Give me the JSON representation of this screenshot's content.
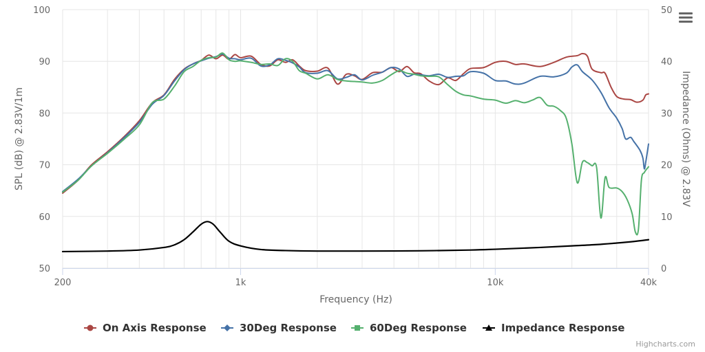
{
  "chart_data": {
    "type": "line",
    "title": "",
    "xlabel": "Frequency (Hz)",
    "ylabel": "SPL (dB) @ 2.83V/1m",
    "ylabel_right": "Impedance (Ohms) @ 2.83V",
    "x_scale": "log",
    "xlim": [
      200,
      40000
    ],
    "ylim": [
      50,
      100
    ],
    "ylim_right": [
      0,
      50
    ],
    "x_ticks": [
      200,
      1000,
      10000,
      40000
    ],
    "x_tick_labels": [
      "200",
      "1k",
      "10k",
      "40k"
    ],
    "y_ticks": [
      50,
      60,
      70,
      80,
      90,
      100
    ],
    "y_tick_labels": [
      "50",
      "60",
      "70",
      "80",
      "90",
      "100"
    ],
    "y_right_ticks": [
      0,
      10,
      20,
      30,
      40,
      50
    ],
    "y_right_tick_labels": [
      "0",
      "10",
      "20",
      "30",
      "40",
      "50"
    ],
    "grid": true,
    "legend_position": "bottom-center",
    "series": [
      {
        "name": "On Axis Response",
        "axis": "left",
        "color": "#aa4643",
        "marker": "circle",
        "points": [
          [
            200,
            64.5
          ],
          [
            230,
            67
          ],
          [
            260,
            70
          ],
          [
            300,
            72.5
          ],
          [
            350,
            75.5
          ],
          [
            400,
            78.5
          ],
          [
            450,
            82
          ],
          [
            500,
            83.5
          ],
          [
            550,
            86.5
          ],
          [
            600,
            88.5
          ],
          [
            650,
            89.5
          ],
          [
            700,
            90.2
          ],
          [
            750,
            91.2
          ],
          [
            800,
            90.5
          ],
          [
            850,
            91.2
          ],
          [
            900,
            90.4
          ],
          [
            950,
            91.3
          ],
          [
            1000,
            90.7
          ],
          [
            1100,
            91
          ],
          [
            1200,
            89.4
          ],
          [
            1300,
            89.1
          ],
          [
            1400,
            90.3
          ],
          [
            1500,
            89.8
          ],
          [
            1600,
            90.3
          ],
          [
            1700,
            89.1
          ],
          [
            1800,
            88.2
          ],
          [
            2000,
            88.1
          ],
          [
            2200,
            88.7
          ],
          [
            2400,
            85.6
          ],
          [
            2600,
            87.5
          ],
          [
            2800,
            87.2
          ],
          [
            3000,
            86.5
          ],
          [
            3300,
            87.8
          ],
          [
            3600,
            87.9
          ],
          [
            3900,
            88.8
          ],
          [
            4200,
            88
          ],
          [
            4500,
            89
          ],
          [
            4800,
            87.8
          ],
          [
            5100,
            87.6
          ],
          [
            5500,
            86.2
          ],
          [
            6000,
            85.5
          ],
          [
            6500,
            86.8
          ],
          [
            7000,
            86.3
          ],
          [
            7500,
            87.6
          ],
          [
            8000,
            88.6
          ],
          [
            9000,
            88.8
          ],
          [
            10000,
            89.8
          ],
          [
            11000,
            90
          ],
          [
            12000,
            89.4
          ],
          [
            13000,
            89.5
          ],
          [
            15000,
            89
          ],
          [
            17000,
            89.8
          ],
          [
            19000,
            90.8
          ],
          [
            21000,
            91.1
          ],
          [
            22000,
            91.5
          ],
          [
            23000,
            91
          ],
          [
            24000,
            88.5
          ],
          [
            26000,
            87.8
          ],
          [
            27000,
            87.7
          ],
          [
            28500,
            85
          ],
          [
            30000,
            83.2
          ],
          [
            32000,
            82.7
          ],
          [
            34000,
            82.6
          ],
          [
            36000,
            82.1
          ],
          [
            38000,
            82.5
          ],
          [
            39000,
            83.5
          ],
          [
            40000,
            83.7
          ]
        ]
      },
      {
        "name": "30Deg Response",
        "axis": "left",
        "color": "#4572a7",
        "marker": "diamond",
        "points": [
          [
            200,
            64.8
          ],
          [
            230,
            67.2
          ],
          [
            260,
            69.8
          ],
          [
            300,
            72.3
          ],
          [
            350,
            75.3
          ],
          [
            400,
            78.2
          ],
          [
            450,
            81.7
          ],
          [
            500,
            83.4
          ],
          [
            550,
            86.2
          ],
          [
            600,
            88.4
          ],
          [
            650,
            89.5
          ],
          [
            700,
            90.1
          ],
          [
            750,
            90.6
          ],
          [
            800,
            90.9
          ],
          [
            850,
            91.4
          ],
          [
            900,
            90.6
          ],
          [
            950,
            90.5
          ],
          [
            1000,
            90.3
          ],
          [
            1100,
            90.6
          ],
          [
            1200,
            89.1
          ],
          [
            1300,
            89.3
          ],
          [
            1400,
            90.5
          ],
          [
            1500,
            90.2
          ],
          [
            1600,
            89.7
          ],
          [
            1700,
            88.9
          ],
          [
            1800,
            87.8
          ],
          [
            2000,
            87.7
          ],
          [
            2200,
            88.2
          ],
          [
            2400,
            86.6
          ],
          [
            2600,
            86.9
          ],
          [
            2800,
            87.4
          ],
          [
            3000,
            86.4
          ],
          [
            3300,
            87.3
          ],
          [
            3600,
            87.9
          ],
          [
            3900,
            88.8
          ],
          [
            4200,
            88.5
          ],
          [
            4500,
            87.1
          ],
          [
            4800,
            87.5
          ],
          [
            5100,
            87.4
          ],
          [
            5500,
            87.2
          ],
          [
            6000,
            87.5
          ],
          [
            6500,
            86.9
          ],
          [
            7000,
            87.1
          ],
          [
            7500,
            87.2
          ],
          [
            8000,
            88
          ],
          [
            9000,
            87.7
          ],
          [
            10000,
            86.3
          ],
          [
            11000,
            86.2
          ],
          [
            12000,
            85.6
          ],
          [
            13000,
            85.8
          ],
          [
            15000,
            87.1
          ],
          [
            17000,
            87
          ],
          [
            19000,
            87.7
          ],
          [
            20000,
            88.9
          ],
          [
            21000,
            89.3
          ],
          [
            22000,
            88
          ],
          [
            24000,
            86.4
          ],
          [
            26000,
            84
          ],
          [
            28000,
            81
          ],
          [
            30000,
            79
          ],
          [
            31500,
            77
          ],
          [
            32500,
            75
          ],
          [
            34000,
            75.3
          ],
          [
            35000,
            74.5
          ],
          [
            37000,
            72.8
          ],
          [
            38000,
            71.3
          ],
          [
            38500,
            69.2
          ],
          [
            39000,
            70.5
          ],
          [
            40000,
            74
          ]
        ]
      },
      {
        "name": "60Deg Response",
        "axis": "left",
        "color": "#55b06e",
        "marker": "square",
        "points": [
          [
            200,
            64.7
          ],
          [
            230,
            67
          ],
          [
            260,
            69.8
          ],
          [
            300,
            72.2
          ],
          [
            350,
            75
          ],
          [
            400,
            77.7
          ],
          [
            450,
            82
          ],
          [
            500,
            82.7
          ],
          [
            550,
            85.2
          ],
          [
            600,
            88
          ],
          [
            650,
            89
          ],
          [
            700,
            90.2
          ],
          [
            750,
            90.7
          ],
          [
            800,
            90.8
          ],
          [
            850,
            91.6
          ],
          [
            900,
            90.3
          ],
          [
            950,
            90
          ],
          [
            1000,
            90.1
          ],
          [
            1100,
            89.8
          ],
          [
            1200,
            89.4
          ],
          [
            1300,
            89.5
          ],
          [
            1400,
            89.2
          ],
          [
            1500,
            90.5
          ],
          [
            1600,
            90
          ],
          [
            1700,
            88.2
          ],
          [
            1800,
            87.7
          ],
          [
            2000,
            86.6
          ],
          [
            2200,
            87.4
          ],
          [
            2400,
            86.5
          ],
          [
            2600,
            86.2
          ],
          [
            2800,
            86.1
          ],
          [
            3000,
            86
          ],
          [
            3300,
            85.8
          ],
          [
            3600,
            86.3
          ],
          [
            3900,
            87.4
          ],
          [
            4200,
            88.2
          ],
          [
            4500,
            87.7
          ],
          [
            4800,
            87.5
          ],
          [
            5100,
            87.2
          ],
          [
            5500,
            87.1
          ],
          [
            6000,
            87
          ],
          [
            6500,
            85.5
          ],
          [
            7000,
            84.2
          ],
          [
            7500,
            83.5
          ],
          [
            8000,
            83.3
          ],
          [
            9000,
            82.7
          ],
          [
            10000,
            82.5
          ],
          [
            11000,
            81.9
          ],
          [
            12000,
            82.4
          ],
          [
            13000,
            82
          ],
          [
            14000,
            82.5
          ],
          [
            15000,
            83
          ],
          [
            16000,
            81.5
          ],
          [
            17000,
            81.3
          ],
          [
            18000,
            80.5
          ],
          [
            19000,
            79
          ],
          [
            20000,
            74
          ],
          [
            21000,
            66.5
          ],
          [
            22000,
            70.5
          ],
          [
            23000,
            70.4
          ],
          [
            24000,
            69.8
          ],
          [
            25000,
            69.5
          ],
          [
            26000,
            59.7
          ],
          [
            27000,
            67.5
          ],
          [
            28000,
            65.6
          ],
          [
            30000,
            65.5
          ],
          [
            31500,
            64.8
          ],
          [
            33000,
            63.2
          ],
          [
            34500,
            60.5
          ],
          [
            35500,
            57
          ],
          [
            36500,
            57.5
          ],
          [
            37500,
            67
          ],
          [
            38500,
            68.5
          ],
          [
            40000,
            69.6
          ]
        ]
      },
      {
        "name": "Impedance Response",
        "axis": "right",
        "color": "#000000",
        "marker": "triangle",
        "points": [
          [
            200,
            3.2
          ],
          [
            300,
            3.3
          ],
          [
            400,
            3.5
          ],
          [
            500,
            4
          ],
          [
            550,
            4.5
          ],
          [
            600,
            5.5
          ],
          [
            650,
            7
          ],
          [
            700,
            8.5
          ],
          [
            740,
            9
          ],
          [
            780,
            8.5
          ],
          [
            830,
            7
          ],
          [
            900,
            5.2
          ],
          [
            1000,
            4.3
          ],
          [
            1200,
            3.6
          ],
          [
            1500,
            3.4
          ],
          [
            2000,
            3.3
          ],
          [
            3000,
            3.3
          ],
          [
            5000,
            3.35
          ],
          [
            8000,
            3.5
          ],
          [
            10000,
            3.65
          ],
          [
            15000,
            4
          ],
          [
            20000,
            4.3
          ],
          [
            25000,
            4.55
          ],
          [
            30000,
            4.85
          ],
          [
            35000,
            5.15
          ],
          [
            40000,
            5.5
          ]
        ]
      }
    ]
  },
  "credit": "Highcharts.com",
  "menu_icon": "hamburger-menu-icon"
}
